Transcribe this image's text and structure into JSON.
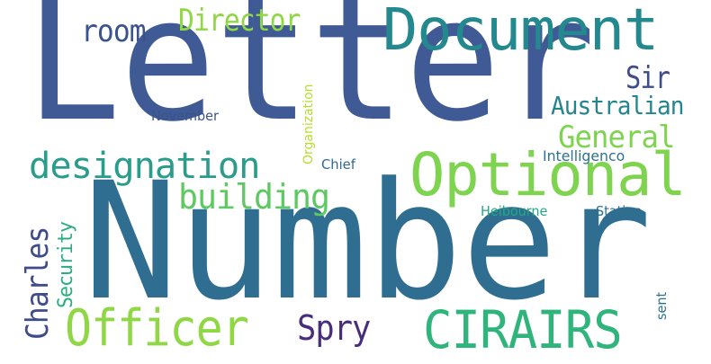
{
  "words": [
    {
      "text": "Letter",
      "color": "#3f5a94"
    },
    {
      "text": "Number",
      "color": "#2f6e91"
    },
    {
      "text": "Document",
      "color": "#23898e"
    },
    {
      "text": "Optional",
      "color": "#7ed34f"
    },
    {
      "text": "CIRAIRS",
      "color": "#2fb47c"
    },
    {
      "text": "Officer",
      "color": "#8fd744"
    },
    {
      "text": "designation",
      "color": "#2a9d8a"
    },
    {
      "text": "building",
      "color": "#5ec962"
    },
    {
      "text": "Director",
      "color": "#8fd744"
    },
    {
      "text": "room",
      "color": "#3b528b"
    },
    {
      "text": "Sir",
      "color": "#3e4c8a"
    },
    {
      "text": "Australian",
      "color": "#25858e"
    },
    {
      "text": "General",
      "color": "#7ed34f"
    },
    {
      "text": "Charles",
      "color": "#3e4c8a"
    },
    {
      "text": "Spry",
      "color": "#472d7b"
    },
    {
      "text": "Security",
      "color": "#29af7f"
    },
    {
      "text": "November",
      "color": "#3b528b"
    },
    {
      "text": "Organization",
      "color": "#b5de2b"
    },
    {
      "text": "Chief",
      "color": "#31688e"
    },
    {
      "text": "Intelligenco",
      "color": "#2c728e"
    },
    {
      "text": "Heibourne",
      "color": "#22a884"
    },
    {
      "text": "Station",
      "color": "#2e6f8e"
    },
    {
      "text": "sent",
      "color": "#2c728e"
    }
  ]
}
